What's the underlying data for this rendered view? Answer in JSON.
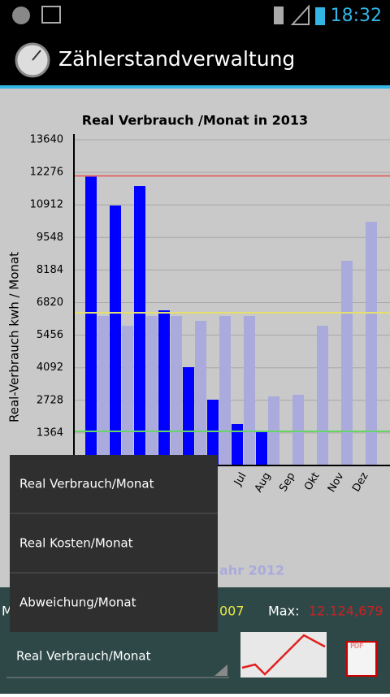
{
  "status_bar": {
    "time": "18:32"
  },
  "app_bar": {
    "title": "Zählerstandverwaltung"
  },
  "chart_data": {
    "type": "bar",
    "title": "Real Verbrauch  /Monat in 2013",
    "y_label": "Real-Verbrauch kwh / Monat",
    "categories": [
      null,
      null,
      null,
      null,
      null,
      null,
      "Jul",
      "Aug",
      "Sep",
      "Okt",
      "Nov",
      "Dez"
    ],
    "series": [
      {
        "color": "#0000ff",
        "values": [
          12124.679,
          10885,
          11700,
          6497,
          4116,
          2755,
          1735,
          1429,
          null,
          null,
          null,
          null
        ]
      },
      {
        "name": "ahr 2012",
        "color": "#aaaadd",
        "values": [
          6259,
          5850,
          6259,
          6259,
          6054,
          6259,
          6259,
          2891,
          2959,
          5850,
          8571,
          10204
        ]
      }
    ],
    "ylim": [
      0,
      13640
    ],
    "yticks": [
      1364,
      2728,
      4092,
      5456,
      6820,
      8184,
      9548,
      10912,
      12276,
      13640
    ],
    "grid": true,
    "reference_lines": [
      {
        "value": 12124.679,
        "color": "#e06a6a"
      },
      {
        "value": 6394,
        "color": "#e4e070"
      },
      {
        "value": 1429,
        "color": "#66d466"
      }
    ]
  },
  "menu": {
    "items": [
      "Real Verbrauch/Monat",
      "Real Kosten/Monat",
      "Abweichung/Monat"
    ]
  },
  "summary": {
    "min_label": "M",
    "min_value": "007",
    "max_label": "Max:",
    "max_value": "12.124,679"
  },
  "spinner": {
    "selected": "Real Verbrauch/Monat"
  },
  "pdf_icon": "PDF"
}
